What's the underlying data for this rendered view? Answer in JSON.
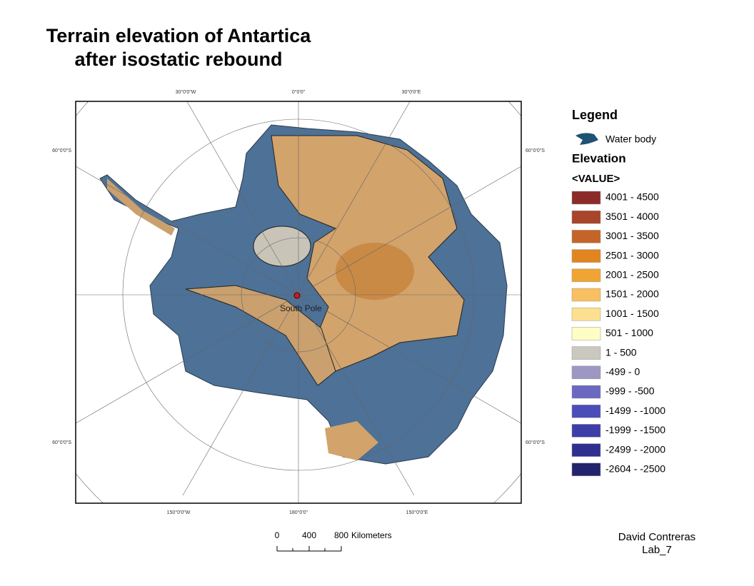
{
  "title": [
    "Terrain elevation of Antartica",
    "after isostatic rebound"
  ],
  "map": {
    "graticule_top": [
      "30°0'0\"W",
      "0°0'0\"",
      "30°0'0\"E"
    ],
    "graticule_bottom": [
      "150°0'0\"W",
      "180°0'0\"",
      "150°0'0\"E"
    ],
    "graticule_left": [
      "60°0'0\"S",
      "60°0'0\"S"
    ],
    "graticule_right": [
      "60°0'0\"S",
      "60°0'0\"S"
    ],
    "pole_label": "South Pole"
  },
  "legend": {
    "title": "Legend",
    "water": "Water body",
    "elevation_title": "Elevation",
    "field": "<VALUE>",
    "classes": [
      {
        "label": "4001 - 4500",
        "color": "#8c2a2a"
      },
      {
        "label": "3501 - 4000",
        "color": "#a8452a"
      },
      {
        "label": "3001 - 3500",
        "color": "#c46428"
      },
      {
        "label": "2501 - 3000",
        "color": "#e0851f"
      },
      {
        "label": "2001 - 2500",
        "color": "#f0a433"
      },
      {
        "label": "1501 - 2000",
        "color": "#f8c060"
      },
      {
        "label": "1001 - 1500",
        "color": "#fde08f"
      },
      {
        "label": "501 - 1000",
        "color": "#fefdc5"
      },
      {
        "label": "1 - 500",
        "color": "#cbc8c0"
      },
      {
        "label": "-499 - 0",
        "color": "#9d97c4"
      },
      {
        "label": "-999 - -500",
        "color": "#6b68c2"
      },
      {
        "label": "-1499 - -1000",
        "color": "#4b4db8"
      },
      {
        "label": "-1999 - -1500",
        "color": "#3e3ea8"
      },
      {
        "label": "-2499 - -2000",
        "color": "#2f2f8f"
      },
      {
        "label": "-2604 - -2500",
        "color": "#24246e"
      }
    ]
  },
  "scale_bar": {
    "labels": [
      "0",
      "400",
      "800"
    ],
    "unit": "Kilometers"
  },
  "author": [
    "David Contreras",
    "Lab_7"
  ]
}
